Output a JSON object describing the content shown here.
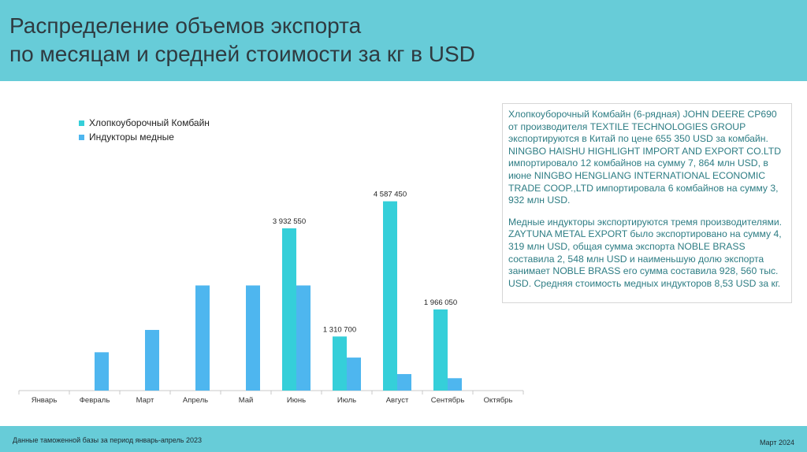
{
  "header": {
    "title_line1": "Распределение объемов экспорта",
    "title_line2": "по месяцам и средней стоимости за кг в USD"
  },
  "colors": {
    "header_bg": "#67ccd8",
    "series_1": "#35cfd9",
    "series_2": "#4eb6ef",
    "note_text": "#2e7d84"
  },
  "chart_data": {
    "type": "bar",
    "categories": [
      "Январь",
      "Февраль",
      "Март",
      "Апрель",
      "Май",
      "Июнь",
      "Июль",
      "Август",
      "Сентябрь",
      "Октябрь"
    ],
    "series": [
      {
        "name": "Хлопкоуборочный Комбайн",
        "values": [
          null,
          null,
          null,
          null,
          null,
          3932550,
          1310700,
          4587450,
          1966050,
          null
        ],
        "labels": [
          "",
          "",
          "",
          "",
          "",
          "3 932 550",
          "1 310 700",
          "4 587 450",
          "1 966 050",
          ""
        ]
      },
      {
        "name": "Индукторы медные",
        "values": [
          null,
          928560,
          1470000,
          2548000,
          2548000,
          2548000,
          800000,
          400000,
          300000,
          null
        ]
      }
    ],
    "ylim": [
      0,
      5000000
    ],
    "legend_position": "top-left",
    "grid": false
  },
  "note": {
    "paragraph1": "Хлопкоуборочный Комбайн (6-рядная) JOHN DEERE CP690 от производителя TEXTILE TECHNOLOGIES GROUP экспортируются в Китай по цене 655 350  USD за комбайн. NINGBO HAISHU HIGHLIGHT IMPORT AND EXPORT CO.LTD импортировало 12 комбайнов на сумму 7, 864 млн USD, в июне NINGBO HENGLIANG INTERNATIONAL ECONOMIC TRADE COOP.,LTD импортировала 6 комбайнов на сумму 3, 932 млн USD.",
    "paragraph2": "Медные индукторы экспортируются тремя производителями. ZAYTUNA METAL EXPORT было экспортировано на сумму 4, 319 млн USD, общая сумма экспорта NOBLE BRASS составила 2, 548 млн USD и наименьшую долю экспорта занимает NOBLE BRASS его сумма составила 928, 560 тыс. USD. Средняя стоимость медных индукторов 8,53 USD за кг."
  },
  "footer": {
    "source": "Данные таможенной базы за период январь-апрель 2023",
    "date": "Март 2024"
  }
}
